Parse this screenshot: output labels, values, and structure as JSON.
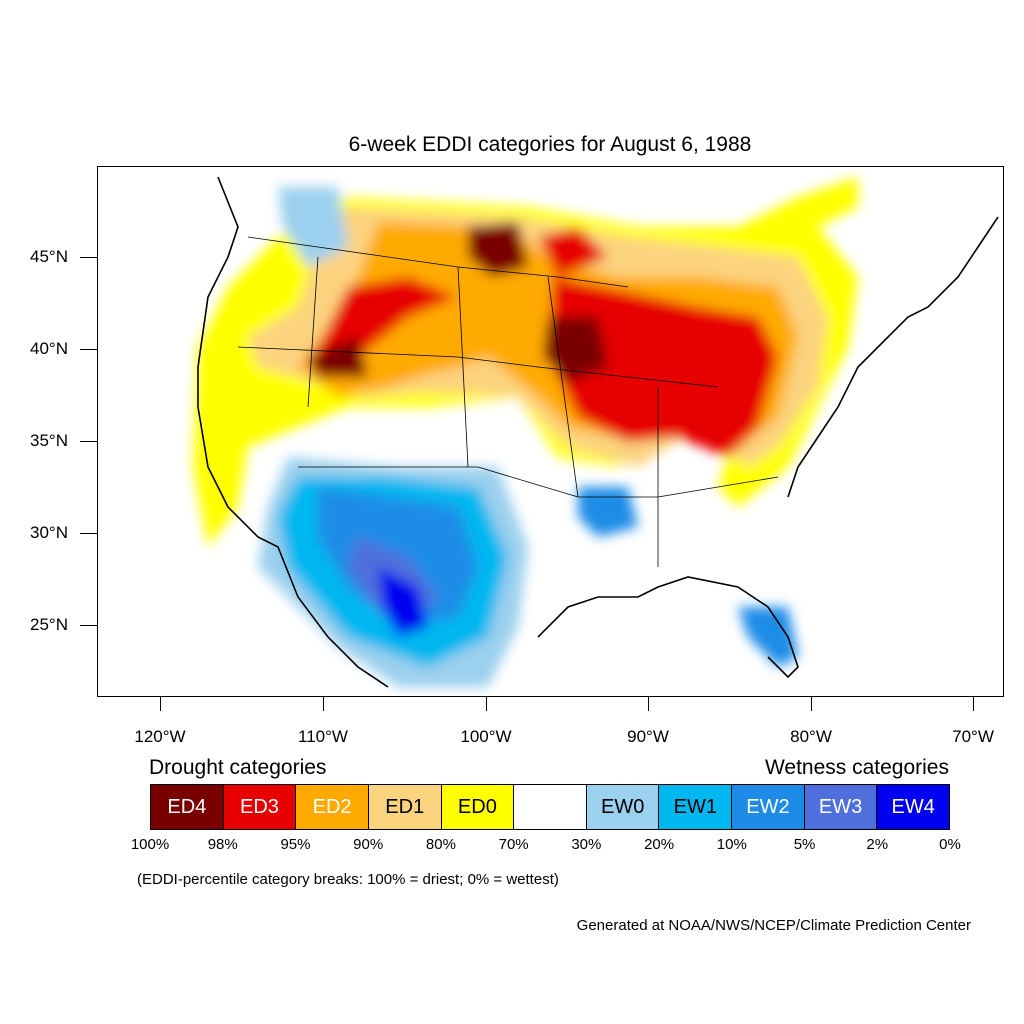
{
  "title": "6-week EDDI categories for August 6, 1988",
  "axes": {
    "lat_labels": [
      "45°N",
      "40°N",
      "35°N",
      "30°N",
      "25°N"
    ],
    "lon_labels": [
      "120°W",
      "110°W",
      "100°W",
      "90°W",
      "80°W",
      "70°W"
    ]
  },
  "legend": {
    "drought_title": "Drought categories",
    "wetness_title": "Wetness categories",
    "categories": [
      {
        "label": "ED4",
        "color": "#7a0000",
        "text_color": "#ffffff"
      },
      {
        "label": "ED3",
        "color": "#e60000",
        "text_color": "#ffffff"
      },
      {
        "label": "ED2",
        "color": "#ffaa00",
        "text_color": "#ffffff"
      },
      {
        "label": "ED1",
        "color": "#fcd37f",
        "text_color": "#000000"
      },
      {
        "label": "ED0",
        "color": "#ffff00",
        "text_color": "#000000"
      },
      {
        "label": "",
        "color": "#ffffff",
        "text_color": "#000000"
      },
      {
        "label": "EW0",
        "color": "#9bd0ee",
        "text_color": "#000000"
      },
      {
        "label": "EW1",
        "color": "#00b7f0",
        "text_color": "#000000"
      },
      {
        "label": "EW2",
        "color": "#1e8ce6",
        "text_color": "#ffffff"
      },
      {
        "label": "EW3",
        "color": "#4f6fdc",
        "text_color": "#ffffff"
      },
      {
        "label": "EW4",
        "color": "#0000f0",
        "text_color": "#ffffff"
      }
    ],
    "percentiles": [
      "100%",
      "98%",
      "95%",
      "90%",
      "80%",
      "70%",
      "30%",
      "20%",
      "10%",
      "5%",
      "2%",
      "0%"
    ]
  },
  "note": "(EDDI-percentile category breaks: 100% = driest; 0% = wettest)",
  "credit": "Generated at NOAA/NWS/NCEP/Climate Prediction Center"
}
